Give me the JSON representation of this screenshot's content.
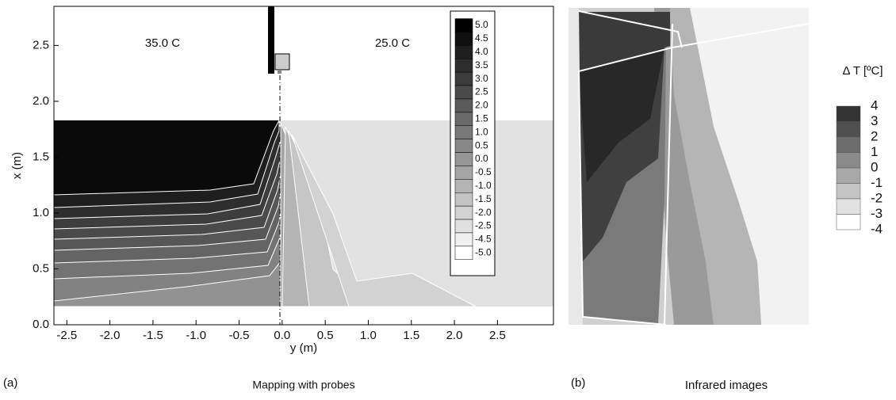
{
  "chart_data": [
    {
      "type": "contour",
      "label": "(a)",
      "title": "Mapping with probes",
      "xlabel": "y (m)",
      "ylabel": "x (m)",
      "annotations": [
        "35.0 C",
        "25.0 C"
      ],
      "xlim": [
        -2.65,
        3.15
      ],
      "ylim": [
        0,
        2.85
      ],
      "xticks": [
        -2.5,
        {
          "value": -2,
          "label": "-2.0"
        },
        -1.5,
        {
          "value": -1,
          "label": "-1.0"
        },
        -0.5,
        {
          "value": 0,
          "label": "0.0"
        },
        0.5,
        {
          "value": 1,
          "label": "1.0"
        },
        1.5,
        {
          "value": 2,
          "label": "2.0"
        },
        2.5
      ],
      "yticks": [
        {
          "value": 0,
          "label": "0.0"
        },
        0.5,
        {
          "value": 1,
          "label": "1.0"
        },
        1.5,
        {
          "value": 2,
          "label": "2.0"
        },
        2.5
      ],
      "levels": [
        {
          "value": 5,
          "label": "5.0"
        },
        4.5,
        {
          "value": 4,
          "label": "4.0"
        },
        3.5,
        {
          "value": 3,
          "label": "3.0"
        },
        2.5,
        {
          "value": 2,
          "label": "2.0"
        },
        1.5,
        {
          "value": 1,
          "label": "1.0"
        },
        0.5,
        {
          "value": 0,
          "label": "0.0"
        },
        -0.5,
        {
          "value": -1,
          "label": "-1.0"
        },
        -1.5,
        {
          "value": -2,
          "label": "-2.0"
        },
        -2.5,
        -4.5,
        {
          "value": -5,
          "label": "-5.0"
        }
      ]
    },
    {
      "type": "image",
      "label": "(b)",
      "title": "Infrared images",
      "colorbar_title": "Δ T [ºC]",
      "levels": [
        4,
        3,
        2,
        1,
        0,
        -1,
        -2,
        -3,
        -4
      ]
    }
  ]
}
